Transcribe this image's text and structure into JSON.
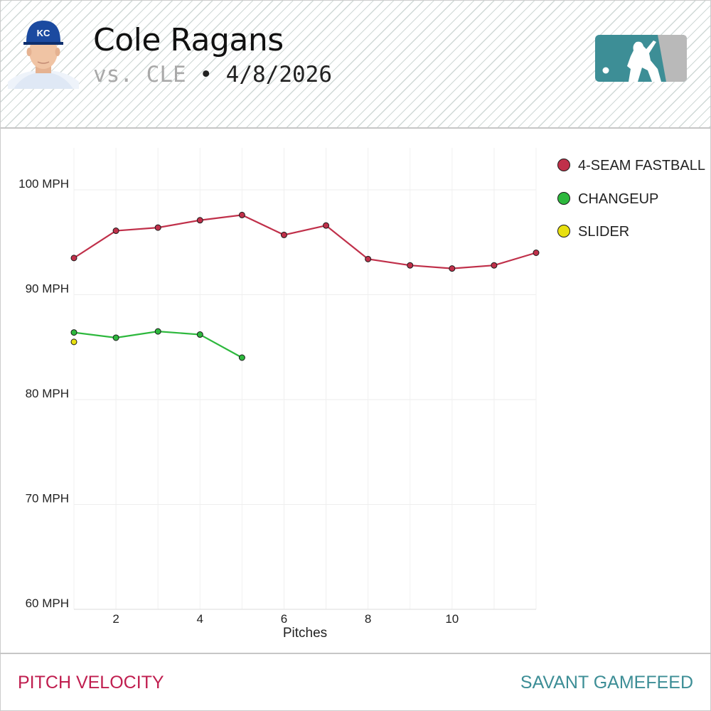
{
  "header": {
    "player_name": "Cole Ragans",
    "opponent": "vs. CLE",
    "separator": "•",
    "date": "4/8/2026",
    "team_logo_text": "KC"
  },
  "footer": {
    "left_label": "PITCH VELOCITY",
    "right_label": "SAVANT GAMEFEED"
  },
  "colors": {
    "fastball": "#c0304a",
    "changeup": "#2db83d",
    "slider": "#e8e010",
    "footer_left": "#c01e4f",
    "footer_right": "#3d8e96",
    "mlb_logo_teal": "#3d8e96",
    "mlb_logo_gray": "#b9b9b9"
  },
  "icons": {
    "player_photo": "player-headshot-icon",
    "mlb_logo": "mlb-logo-icon"
  },
  "chart_data": {
    "type": "line",
    "xlabel": "Pitches",
    "ylabel": "",
    "xlim": [
      1,
      12
    ],
    "ylim": [
      60,
      104
    ],
    "x_ticks": [
      2,
      4,
      6,
      8,
      10
    ],
    "x_tick_labels": [
      "2",
      "4",
      "6",
      "8",
      "10"
    ],
    "y_ticks": [
      60,
      70,
      80,
      90,
      100
    ],
    "y_tick_labels": [
      "60 MPH",
      "70 MPH",
      "80 MPH",
      "90 MPH",
      "100 MPH"
    ],
    "grid": true,
    "legend_position": "right",
    "series": [
      {
        "name": "4-SEAM FASTBALL",
        "color": "#c0304a",
        "x": [
          1,
          2,
          3,
          4,
          5,
          6,
          7,
          8,
          9,
          10,
          11,
          12
        ],
        "values": [
          93.5,
          96.1,
          96.4,
          97.1,
          97.6,
          95.7,
          96.6,
          93.4,
          92.8,
          92.5,
          92.8,
          94.0
        ]
      },
      {
        "name": "CHANGEUP",
        "color": "#2db83d",
        "x": [
          1,
          2,
          3,
          4,
          5
        ],
        "values": [
          86.4,
          85.9,
          86.5,
          86.2,
          84.0
        ]
      },
      {
        "name": "SLIDER",
        "color": "#e8e010",
        "x": [
          1
        ],
        "values": [
          85.5
        ]
      }
    ]
  }
}
